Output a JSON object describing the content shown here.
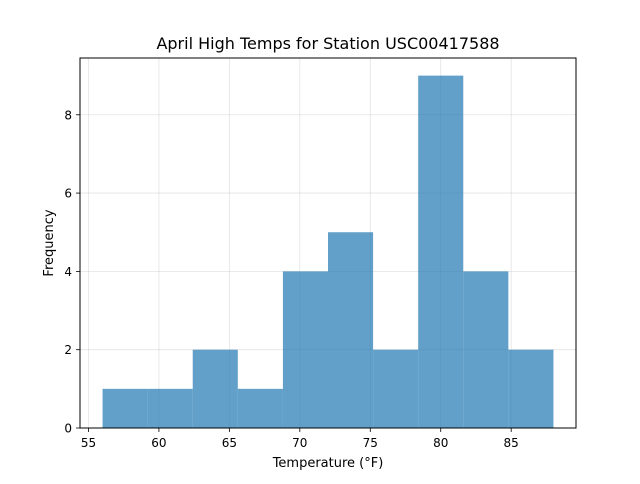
{
  "chart_data": {
    "type": "bar",
    "title": "April High Temps for Station USC00417588",
    "xlabel": "Temperature (°F)",
    "ylabel": "Frequency",
    "bin_edges": [
      56.0,
      59.2,
      62.4,
      65.6,
      68.8,
      72.0,
      75.2,
      78.4,
      81.6,
      84.8,
      88.0
    ],
    "counts": [
      1,
      1,
      2,
      1,
      4,
      5,
      2,
      9,
      4,
      2
    ],
    "xlim": [
      54.4,
      89.6
    ],
    "ylim": [
      0,
      9.45
    ],
    "xticks": [
      55,
      60,
      65,
      70,
      75,
      80,
      85
    ],
    "yticks": [
      0,
      2,
      4,
      6,
      8
    ],
    "grid": true,
    "bar_color": "#1f77b4",
    "bar_opacity": 0.7
  }
}
